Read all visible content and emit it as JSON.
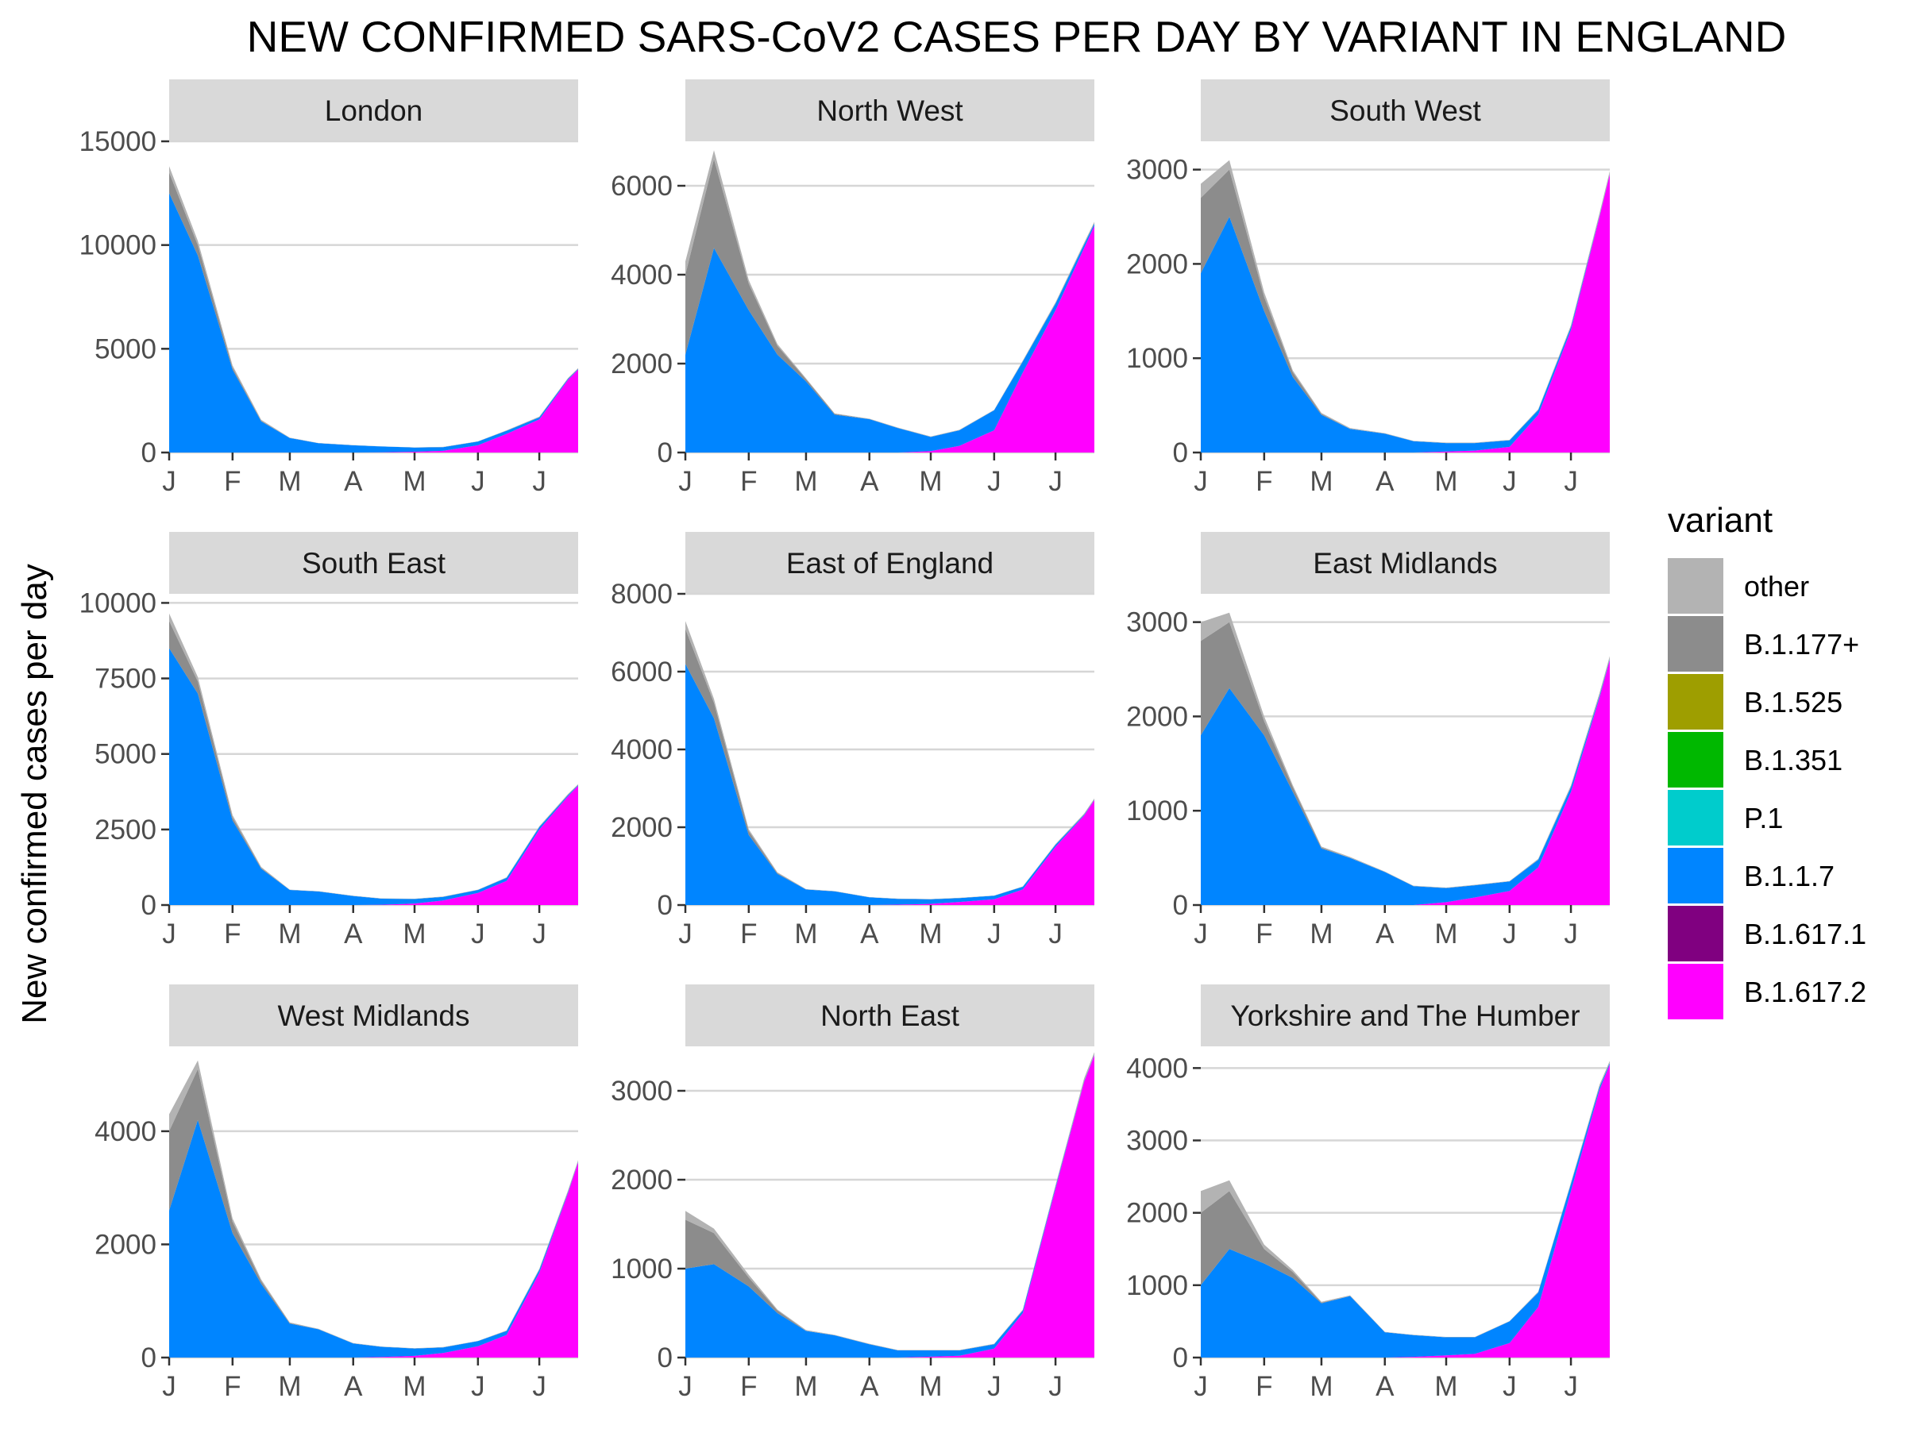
{
  "chart_data": {
    "type": "area",
    "title": "NEW CONFIRMED SARS-CoV2 CASES PER DAY BY VARIANT IN ENGLAND",
    "ylabel": "New confirmed cases per day",
    "xlabel": "",
    "stacked": true,
    "grid": "horizontal major gridlines",
    "x": [
      "01-Jan",
      "15-Jan",
      "01-Feb",
      "15-Feb",
      "01-Mar",
      "15-Mar",
      "01-Apr",
      "15-Apr",
      "01-May",
      "15-May",
      "01-Jun",
      "15-Jun",
      "01-Jul",
      "15-Jul",
      "20-Jul"
    ],
    "x_ticks": [
      "J",
      "F",
      "M",
      "A",
      "M",
      "J",
      "J"
    ],
    "legend": {
      "title": "variant",
      "position": "right",
      "entries": [
        {
          "name": "other",
          "color": "#b3b3b3"
        },
        {
          "name": "B.1.177+",
          "color": "#8c8c8c"
        },
        {
          "name": "B.1.525",
          "color": "#9e9e00"
        },
        {
          "name": "B.1.351",
          "color": "#00b800"
        },
        {
          "name": "P.1",
          "color": "#00cccc"
        },
        {
          "name": "B.1.1.7",
          "color": "#0085ff"
        },
        {
          "name": "B.1.617.1",
          "color": "#800080"
        },
        {
          "name": "B.1.617.2",
          "color": "#ff00ff"
        }
      ]
    },
    "panels": [
      {
        "region": "London",
        "ylim": [
          0,
          15000
        ],
        "yticks": [
          0,
          5000,
          10000,
          15000
        ],
        "series": {
          "B.1.1.7": [
            12500,
            9500,
            4000,
            1500,
            700,
            450,
            350,
            280,
            200,
            180,
            180,
            150,
            100,
            50,
            30
          ],
          "B.1.617.2": [
            0,
            0,
            0,
            0,
            0,
            0,
            0,
            10,
            40,
            80,
            350,
            900,
            1600,
            3500,
            4000
          ],
          "B.1.177+": [
            1000,
            500,
            100,
            30,
            0,
            0,
            0,
            0,
            0,
            0,
            0,
            0,
            0,
            0,
            0
          ],
          "other": [
            300,
            200,
            100,
            50,
            20,
            10,
            10,
            10,
            10,
            10,
            10,
            20,
            30,
            40,
            40
          ]
        }
      },
      {
        "region": "North West",
        "ylim": [
          0,
          7000
        ],
        "yticks": [
          0,
          2000,
          4000,
          6000
        ],
        "series": {
          "B.1.1.7": [
            2200,
            4600,
            3200,
            2200,
            1600,
            850,
            750,
            550,
            320,
            350,
            450,
            250,
            150,
            80,
            50
          ],
          "B.1.617.2": [
            0,
            0,
            0,
            0,
            0,
            0,
            0,
            0,
            30,
            150,
            500,
            1800,
            3200,
            4600,
            5100
          ],
          "B.1.177+": [
            1800,
            2000,
            600,
            200,
            50,
            20,
            0,
            0,
            0,
            0,
            0,
            0,
            0,
            0,
            0
          ],
          "other": [
            300,
            200,
            80,
            40,
            20,
            10,
            10,
            10,
            10,
            10,
            10,
            20,
            30,
            40,
            40
          ]
        }
      },
      {
        "region": "South West",
        "ylim": [
          0,
          3300
        ],
        "yticks": [
          0,
          1000,
          2000,
          3000
        ],
        "series": {
          "B.1.1.7": [
            1900,
            2500,
            1500,
            800,
            400,
            250,
            200,
            120,
            90,
            80,
            70,
            50,
            30,
            10,
            5
          ],
          "B.1.617.2": [
            0,
            0,
            0,
            0,
            0,
            0,
            0,
            0,
            10,
            20,
            60,
            400,
            1300,
            2500,
            2950
          ],
          "B.1.177+": [
            800,
            500,
            150,
            50,
            10,
            0,
            0,
            0,
            0,
            0,
            0,
            0,
            0,
            0,
            0
          ],
          "other": [
            150,
            100,
            50,
            20,
            10,
            10,
            5,
            5,
            5,
            5,
            5,
            10,
            20,
            30,
            30
          ]
        }
      },
      {
        "region": "South East",
        "ylim": [
          0,
          10300
        ],
        "yticks": [
          0,
          2500,
          5000,
          7500,
          10000
        ],
        "series": {
          "B.1.1.7": [
            8500,
            7000,
            2800,
            1200,
            500,
            450,
            300,
            200,
            150,
            120,
            100,
            100,
            80,
            40,
            20
          ],
          "B.1.617.2": [
            0,
            0,
            0,
            0,
            0,
            0,
            0,
            10,
            50,
            150,
            400,
            800,
            2500,
            3600,
            3950
          ],
          "B.1.177+": [
            900,
            400,
            100,
            30,
            0,
            0,
            0,
            0,
            0,
            0,
            0,
            0,
            0,
            0,
            0
          ],
          "other": [
            250,
            150,
            80,
            30,
            10,
            10,
            10,
            10,
            10,
            10,
            10,
            20,
            30,
            30,
            30
          ]
        }
      },
      {
        "region": "East of England",
        "ylim": [
          0,
          8000
        ],
        "yticks": [
          0,
          2000,
          4000,
          6000,
          8000
        ],
        "series": {
          "B.1.1.7": [
            6200,
            4800,
            1800,
            800,
            400,
            350,
            200,
            150,
            120,
            100,
            90,
            70,
            50,
            20,
            10
          ],
          "B.1.617.2": [
            0,
            0,
            0,
            0,
            0,
            0,
            0,
            10,
            30,
            80,
            150,
            400,
            1500,
            2300,
            2700
          ],
          "B.1.177+": [
            900,
            400,
            100,
            20,
            0,
            0,
            0,
            0,
            0,
            0,
            0,
            0,
            0,
            0,
            0
          ],
          "other": [
            200,
            100,
            50,
            20,
            10,
            10,
            5,
            5,
            5,
            5,
            5,
            10,
            20,
            30,
            30
          ]
        }
      },
      {
        "region": "East Midlands",
        "ylim": [
          0,
          3300
        ],
        "yticks": [
          0,
          1000,
          2000,
          3000
        ],
        "series": {
          "B.1.1.7": [
            1800,
            2300,
            1800,
            1200,
            600,
            500,
            350,
            200,
            150,
            130,
            100,
            80,
            50,
            20,
            10
          ],
          "B.1.617.2": [
            0,
            0,
            0,
            0,
            0,
            0,
            0,
            0,
            30,
            80,
            150,
            400,
            1200,
            2200,
            2600
          ],
          "B.1.177+": [
            1000,
            700,
            150,
            50,
            10,
            0,
            0,
            0,
            0,
            0,
            0,
            0,
            0,
            0,
            0
          ],
          "other": [
            200,
            100,
            50,
            20,
            10,
            10,
            5,
            5,
            5,
            5,
            5,
            10,
            20,
            30,
            30
          ]
        }
      },
      {
        "region": "West Midlands",
        "ylim": [
          0,
          5500
        ],
        "yticks": [
          0,
          2000,
          4000
        ],
        "series": {
          "B.1.1.7": [
            2600,
            4200,
            2200,
            1300,
            600,
            500,
            250,
            180,
            130,
            100,
            90,
            70,
            50,
            20,
            10
          ],
          "B.1.617.2": [
            0,
            0,
            0,
            0,
            0,
            0,
            0,
            10,
            30,
            80,
            200,
            400,
            1500,
            2900,
            3450
          ],
          "B.1.177+": [
            1400,
            900,
            200,
            50,
            10,
            0,
            0,
            0,
            0,
            0,
            0,
            0,
            0,
            0,
            0
          ],
          "other": [
            300,
            150,
            60,
            30,
            10,
            10,
            5,
            5,
            5,
            5,
            5,
            10,
            20,
            30,
            30
          ]
        }
      },
      {
        "region": "North East",
        "ylim": [
          0,
          3500
        ],
        "yticks": [
          0,
          1000,
          2000,
          3000
        ],
        "series": {
          "B.1.1.7": [
            1000,
            1050,
            800,
            500,
            300,
            250,
            150,
            80,
            70,
            60,
            50,
            30,
            20,
            10,
            5
          ],
          "B.1.617.2": [
            0,
            0,
            0,
            0,
            0,
            0,
            0,
            0,
            10,
            20,
            100,
            500,
            1900,
            3100,
            3400
          ],
          "B.1.177+": [
            550,
            350,
            100,
            30,
            0,
            0,
            0,
            0,
            0,
            0,
            0,
            0,
            0,
            0,
            0
          ],
          "other": [
            100,
            50,
            30,
            10,
            10,
            5,
            5,
            5,
            5,
            5,
            5,
            10,
            20,
            30,
            30
          ]
        }
      },
      {
        "region": "Yorkshire and The Humber",
        "ylim": [
          0,
          4300
        ],
        "yticks": [
          0,
          1000,
          2000,
          3000,
          4000
        ],
        "series": {
          "B.1.1.7": [
            1000,
            1500,
            1300,
            1100,
            750,
            850,
            350,
            300,
            250,
            230,
            300,
            200,
            100,
            40,
            20
          ],
          "B.1.617.2": [
            0,
            0,
            0,
            0,
            0,
            0,
            0,
            10,
            30,
            50,
            200,
            700,
            2300,
            3700,
            4050
          ],
          "B.1.177+": [
            1000,
            800,
            200,
            80,
            10,
            0,
            0,
            0,
            0,
            0,
            0,
            0,
            0,
            0,
            0
          ],
          "other": [
            300,
            150,
            60,
            30,
            10,
            10,
            5,
            5,
            5,
            5,
            5,
            10,
            20,
            30,
            30
          ]
        }
      }
    ]
  }
}
